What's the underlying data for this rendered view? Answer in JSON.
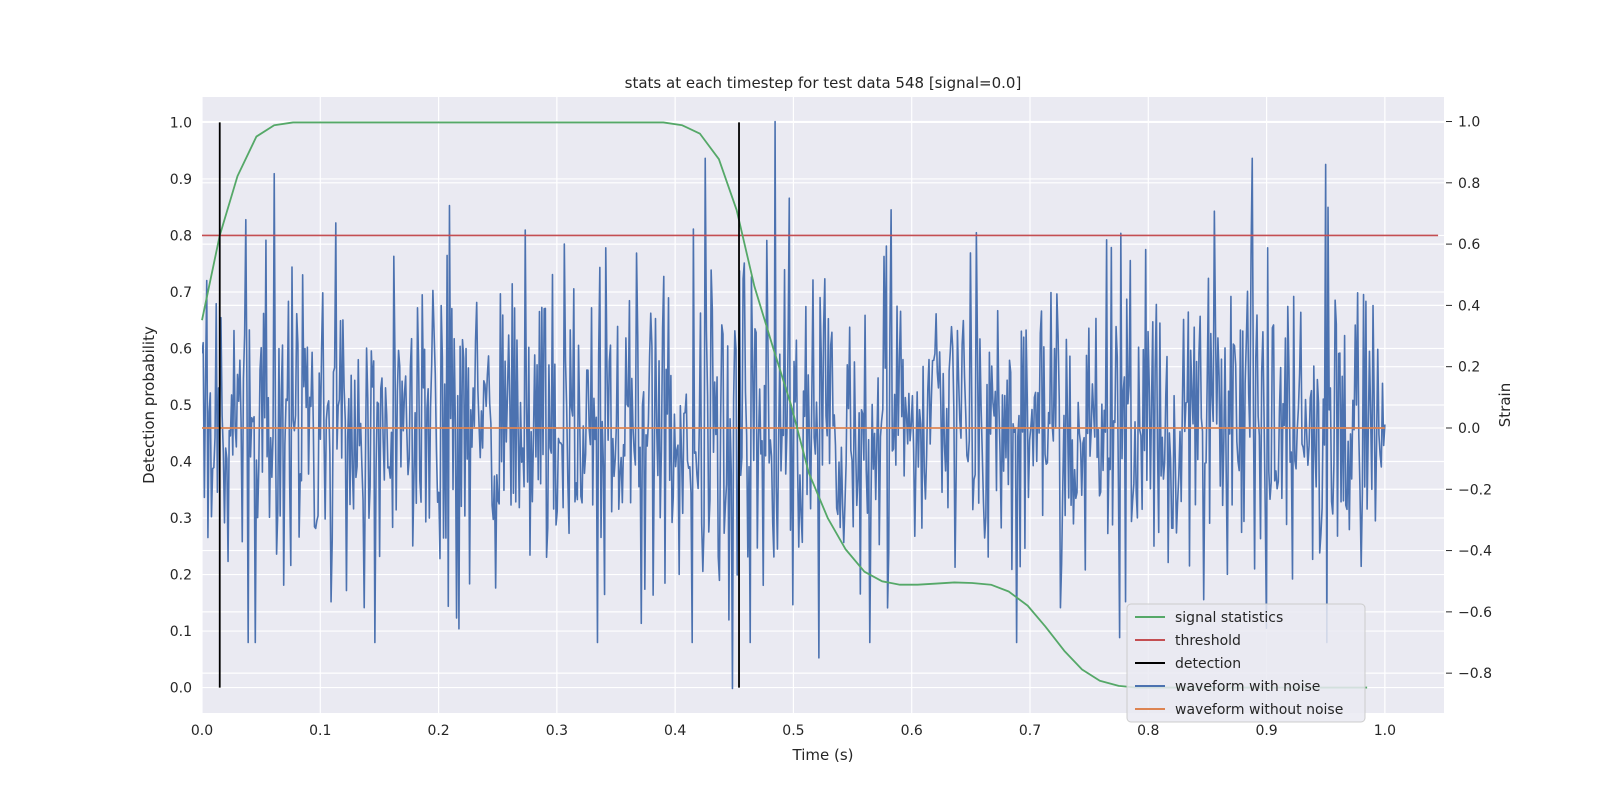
{
  "chart_data": {
    "type": "line",
    "title": "stats at each timestep for test data 548 [signal=0.0]",
    "xlabel": "Time (s)",
    "ylabel_left": "Detection probability",
    "ylabel_right": "Strain",
    "xlim": [
      0.0,
      1.05
    ],
    "ylim_left": [
      -0.045,
      1.045
    ],
    "ylim_right": [
      -0.93,
      1.08
    ],
    "x_ticks": [
      "0.0",
      "0.1",
      "0.2",
      "0.3",
      "0.4",
      "0.5",
      "0.6",
      "0.7",
      "0.8",
      "0.9",
      "1.0"
    ],
    "y_ticks_left": [
      "0.0",
      "0.1",
      "0.2",
      "0.3",
      "0.4",
      "0.5",
      "0.6",
      "0.7",
      "0.8",
      "0.9",
      "1.0"
    ],
    "y_ticks_right": [
      "−0.8",
      "−0.6",
      "−0.4",
      "−0.2",
      "0.0",
      "0.2",
      "0.4",
      "0.6",
      "0.8",
      "1.0"
    ],
    "grid": true,
    "legend_position": "bottom-right",
    "legend": [
      "signal statistics",
      "threshold",
      "detection",
      "waveform with noise",
      "waveform without noise"
    ],
    "colors": {
      "signal_statistics": "#55a868",
      "threshold": "#c44e52",
      "detection": "#000000",
      "waveform_with_noise": "#4c72b0",
      "waveform_without_noise": "#dd8452",
      "plot_background": "#eaeaf2"
    },
    "signal_statistics": {
      "axis": "left",
      "x": [
        0.0,
        0.015,
        0.03,
        0.046,
        0.061,
        0.077,
        0.092,
        0.2,
        0.3,
        0.39,
        0.406,
        0.421,
        0.437,
        0.452,
        0.467,
        0.483,
        0.498,
        0.513,
        0.529,
        0.544,
        0.56,
        0.575,
        0.59,
        0.605,
        0.621,
        0.636,
        0.651,
        0.667,
        0.682,
        0.698,
        0.713,
        0.729,
        0.744,
        0.759,
        0.775,
        0.79,
        0.805,
        0.82,
        0.85,
        0.9,
        0.95,
        0.985
      ],
      "y": [
        0.65,
        0.8,
        0.905,
        0.975,
        0.995,
        1.0,
        1.0,
        1.0,
        1.0,
        1.0,
        0.995,
        0.98,
        0.935,
        0.845,
        0.71,
        0.6,
        0.5,
        0.38,
        0.3,
        0.245,
        0.205,
        0.188,
        0.182,
        0.182,
        0.184,
        0.186,
        0.185,
        0.182,
        0.17,
        0.145,
        0.108,
        0.065,
        0.032,
        0.012,
        0.003,
        0.0,
        0.0,
        0.0,
        0.0,
        0.0,
        0.0,
        0.0
      ]
    },
    "threshold": {
      "axis": "left",
      "value": 0.8
    },
    "detection": {
      "axis": "left",
      "x": [
        0.015,
        0.454
      ],
      "y_range": [
        0.0,
        1.0
      ]
    },
    "waveform_with_noise": {
      "axis": "right",
      "x_range": [
        0.0,
        1.0
      ],
      "n_points": 1000,
      "std": 0.26,
      "extremes": [
        {
          "x": 0.061,
          "y": 0.83
        },
        {
          "x": 0.425,
          "y": 0.88
        },
        {
          "x": 0.448,
          "y": -0.85
        },
        {
          "x": 0.484,
          "y": 1.0
        },
        {
          "x": 0.522,
          "y": -0.75
        },
        {
          "x": 0.888,
          "y": 0.88
        },
        {
          "x": 0.95,
          "y": 0.86
        },
        {
          "x": 0.952,
          "y": 0.72
        }
      ]
    },
    "waveform_without_noise": {
      "axis": "right",
      "x_range": [
        0.0,
        1.0
      ],
      "value": 0.0
    }
  }
}
